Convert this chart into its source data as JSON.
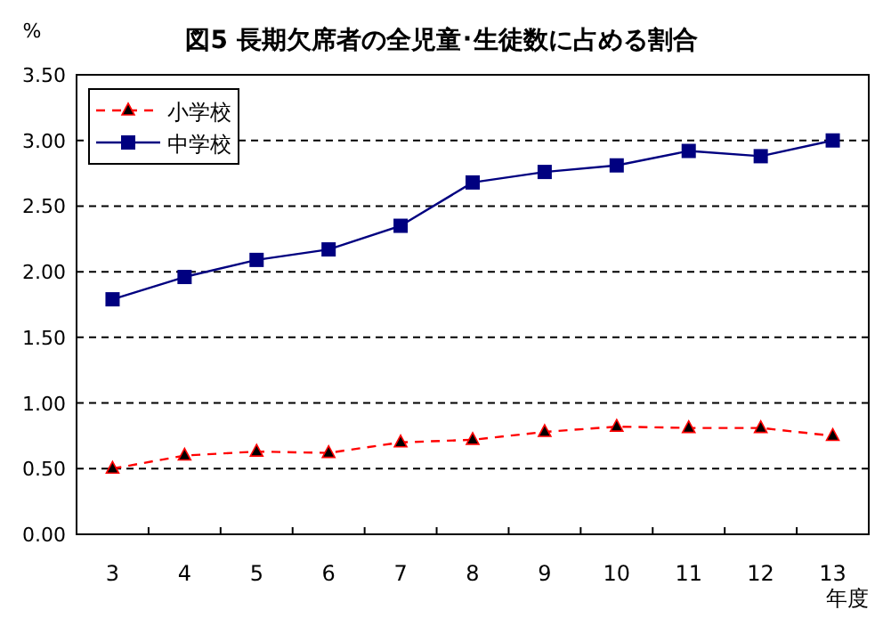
{
  "chart_data": {
    "type": "line",
    "title": "図5  長期欠席者の全児童･生徒数に占める割合",
    "ylabel": "%",
    "xlabel": "年度",
    "categories": [
      "3",
      "4",
      "5",
      "6",
      "7",
      "8",
      "9",
      "10",
      "11",
      "12",
      "13"
    ],
    "series": [
      {
        "name": "小学校",
        "color": "#ff0000",
        "marker": "triangle",
        "line_style": "dashed",
        "values": [
          0.5,
          0.6,
          0.63,
          0.62,
          0.7,
          0.72,
          0.78,
          0.82,
          0.81,
          0.81,
          0.75
        ]
      },
      {
        "name": "中学校",
        "color": "#000080",
        "marker": "square",
        "line_style": "solid",
        "values": [
          1.79,
          1.96,
          2.09,
          2.17,
          2.35,
          2.68,
          2.76,
          2.81,
          2.92,
          2.88,
          3.0
        ]
      }
    ],
    "ylim": [
      0,
      3.5
    ],
    "yticks": [
      {
        "value": 0,
        "label": "0.00"
      },
      {
        "value": 0.5,
        "label": "0.50"
      },
      {
        "value": 1,
        "label": "1.00"
      },
      {
        "value": 1.5,
        "label": "1.50"
      },
      {
        "value": 2,
        "label": "2.00"
      },
      {
        "value": 2.5,
        "label": "2.50"
      },
      {
        "value": 3,
        "label": "3.00"
      },
      {
        "value": 3.5,
        "label": "3.50"
      }
    ],
    "grid": "y",
    "legend": "top left"
  }
}
